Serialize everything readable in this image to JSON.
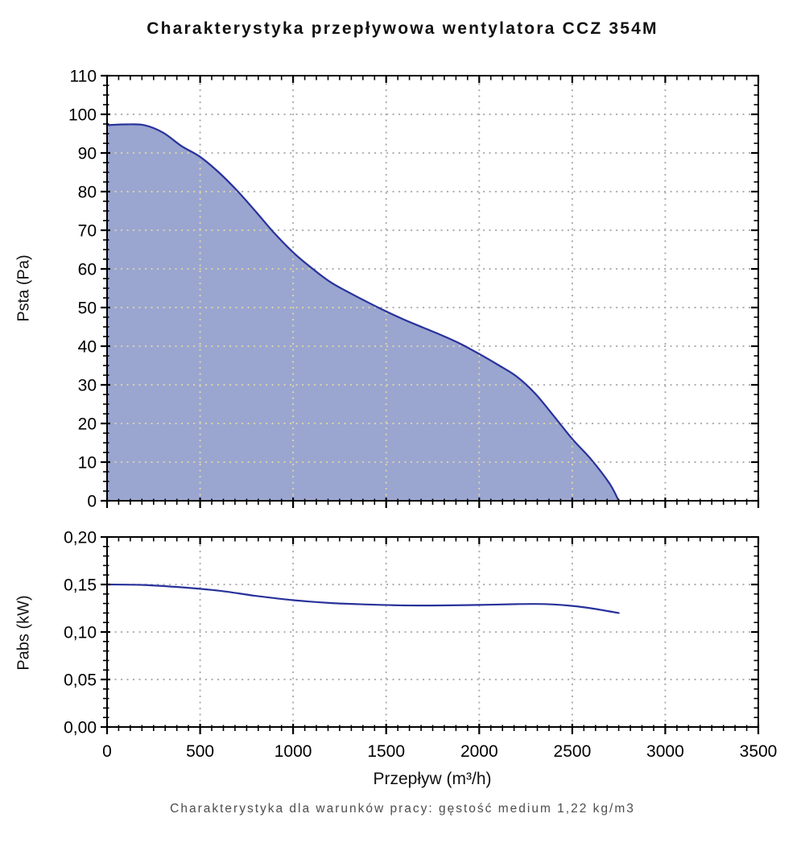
{
  "title": "Charakterystyka przepływowa wentylatora CCZ 354M",
  "footer": "Charakterystyka dla warunków pracy: gęstość medium 1,22 kg/m3",
  "colors": {
    "curve": "#28329b",
    "fill": "#9aa5d0",
    "grid_gray": "#b0b0b0",
    "grid_tan": "#d9d3ab",
    "axis": "#000000",
    "title_text": "#111111",
    "footer_text": "#4d4d4d"
  },
  "chart_data": [
    {
      "type": "area",
      "name": "psta",
      "ylabel": "Psta (Pa)",
      "xlim": [
        0,
        3500
      ],
      "ylim": [
        0,
        110
      ],
      "x_minor": 62.5,
      "y_minor": 2.5,
      "grid": "dotted",
      "legend": "none",
      "xticks": {
        "values": [
          0,
          500,
          1000,
          1500,
          2000,
          2500,
          3000,
          3500
        ],
        "labels": []
      },
      "yticks": {
        "values": [
          0,
          10,
          20,
          30,
          40,
          50,
          60,
          70,
          80,
          90,
          100,
          110
        ],
        "labels": [
          "0",
          "10",
          "20",
          "30",
          "40",
          "50",
          "60",
          "70",
          "80",
          "90",
          "100",
          "110"
        ]
      },
      "series": [
        {
          "name": "Psta",
          "fill": true,
          "x": [
            0,
            100,
            200,
            300,
            400,
            500,
            600,
            700,
            800,
            900,
            1000,
            1100,
            1200,
            1300,
            1400,
            1500,
            1600,
            1700,
            1800,
            1900,
            2000,
            2100,
            2200,
            2300,
            2400,
            2500,
            2600,
            2700,
            2750
          ],
          "y": [
            97.2,
            97.4,
            97.2,
            95.3,
            91.8,
            89,
            85,
            80.2,
            74.8,
            69.2,
            64.3,
            60.2,
            56.6,
            53.9,
            51.4,
            49,
            46.8,
            44.8,
            42.8,
            40.6,
            38,
            35.2,
            32.2,
            27.8,
            22,
            16,
            10.8,
            4.5,
            0
          ]
        }
      ]
    },
    {
      "type": "line",
      "name": "pabs",
      "ylabel": "Pabs (kW)",
      "xlabel": "Przepływ (m³/h)",
      "xlim": [
        0,
        3500
      ],
      "ylim": [
        0,
        0.2
      ],
      "x_minor": 62.5,
      "y_minor": 0.01,
      "grid": "dotted",
      "legend": "none",
      "xticks": {
        "values": [
          0,
          500,
          1000,
          1500,
          2000,
          2500,
          3000,
          3500
        ],
        "labels": [
          "0",
          "500",
          "1000",
          "1500",
          "2000",
          "2500",
          "3000",
          "3500"
        ]
      },
      "yticks": {
        "values": [
          0,
          0.05,
          0.1,
          0.15,
          0.2
        ],
        "labels": [
          "0,00",
          "0,05",
          "0,10",
          "0,15",
          "0,20"
        ]
      },
      "series": [
        {
          "name": "Pabs",
          "fill": false,
          "x": [
            0,
            200,
            400,
            600,
            800,
            1000,
            1200,
            1400,
            1600,
            1800,
            2000,
            2200,
            2300,
            2400,
            2500,
            2600,
            2750
          ],
          "y": [
            0.15,
            0.1495,
            0.147,
            0.1435,
            0.138,
            0.1335,
            0.1305,
            0.129,
            0.128,
            0.128,
            0.1285,
            0.1293,
            0.1295,
            0.129,
            0.1275,
            0.125,
            0.12
          ]
        }
      ]
    }
  ]
}
